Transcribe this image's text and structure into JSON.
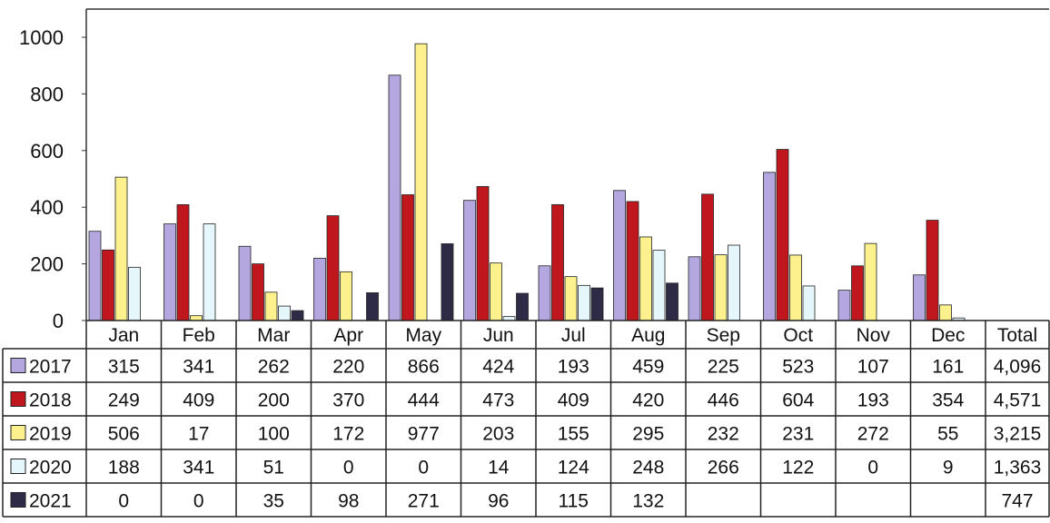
{
  "colors": {
    "2017": "#b4a7e0",
    "2018": "#c0171e",
    "2019": "#fcf18d",
    "2020": "#e6f7fb",
    "2021": "#2d2b45",
    "outline": "#222222"
  },
  "chart_data": {
    "type": "bar",
    "categories": [
      "Jan",
      "Feb",
      "Mar",
      "Apr",
      "May",
      "Jun",
      "Jul",
      "Aug",
      "Sep",
      "Oct",
      "Nov",
      "Dec"
    ],
    "series": [
      {
        "name": "2017",
        "values": [
          315,
          341,
          262,
          220,
          866,
          424,
          193,
          459,
          225,
          523,
          107,
          161
        ]
      },
      {
        "name": "2018",
        "values": [
          249,
          409,
          200,
          370,
          444,
          473,
          409,
          420,
          446,
          604,
          193,
          354
        ]
      },
      {
        "name": "2019",
        "values": [
          506,
          17,
          100,
          172,
          977,
          203,
          155,
          295,
          232,
          231,
          272,
          55
        ]
      },
      {
        "name": "2020",
        "values": [
          188,
          341,
          51,
          0,
          0,
          14,
          124,
          248,
          266,
          122,
          0,
          9
        ]
      },
      {
        "name": "2021",
        "values": [
          0,
          0,
          35,
          98,
          271,
          96,
          115,
          132,
          null,
          null,
          null,
          null
        ]
      }
    ],
    "table": {
      "total_header": "Total",
      "rows": [
        {
          "series": "2017",
          "cells": [
            "315",
            "341",
            "262",
            "220",
            "866",
            "424",
            "193",
            "459",
            "225",
            "523",
            "107",
            "161"
          ],
          "total": "4,096"
        },
        {
          "series": "2018",
          "cells": [
            "249",
            "409",
            "200",
            "370",
            "444",
            "473",
            "409",
            "420",
            "446",
            "604",
            "193",
            "354"
          ],
          "total": "4,571"
        },
        {
          "series": "2019",
          "cells": [
            "506",
            "17",
            "100",
            "172",
            "977",
            "203",
            "155",
            "295",
            "232",
            "231",
            "272",
            "55"
          ],
          "total": "3,215"
        },
        {
          "series": "2020",
          "cells": [
            "188",
            "341",
            "51",
            "0",
            "0",
            "14",
            "124",
            "248",
            "266",
            "122",
            "0",
            "9"
          ],
          "total": "1,363"
        },
        {
          "series": "2021",
          "cells": [
            "0",
            "0",
            "35",
            "98",
            "271",
            "96",
            "115",
            "132",
            "",
            "",
            "",
            ""
          ],
          "total": "747"
        }
      ]
    },
    "yticks": [
      "0",
      "200",
      "400",
      "600",
      "800",
      "1000"
    ],
    "ylim": [
      0,
      1000
    ],
    "xlabel": "",
    "ylabel": "",
    "title": "",
    "grid": false,
    "legend": "data-table"
  }
}
